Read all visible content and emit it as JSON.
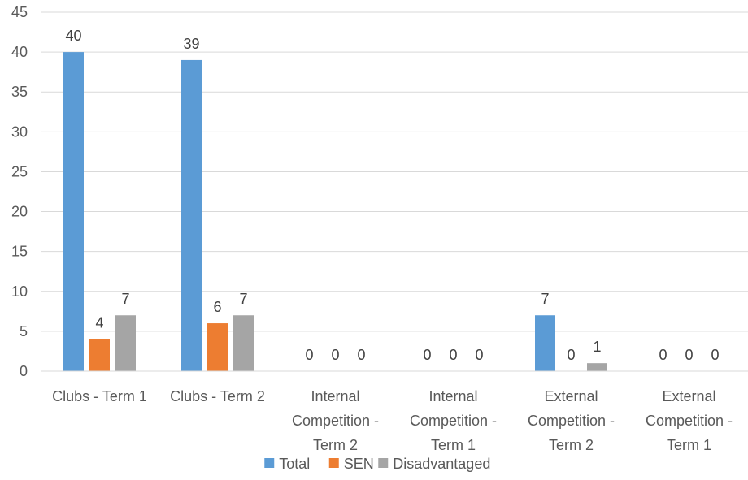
{
  "chart_data": {
    "type": "bar",
    "categories": [
      [
        "Clubs - Term 1"
      ],
      [
        "Clubs - Term 2"
      ],
      [
        "Internal",
        "Competition -",
        "Term 2"
      ],
      [
        "Internal",
        "Competition -",
        "Term 1"
      ],
      [
        "External",
        "Competition -",
        "Term 2"
      ],
      [
        "External",
        "Competition -",
        "Term 1"
      ]
    ],
    "series": [
      {
        "name": "Total",
        "color": "#5b9bd5",
        "values": [
          40,
          39,
          0,
          0,
          7,
          0
        ]
      },
      {
        "name": "SEN",
        "color": "#ed7d31",
        "values": [
          4,
          6,
          0,
          0,
          0,
          0
        ]
      },
      {
        "name": "Disadvantaged",
        "color": "#a5a5a5",
        "values": [
          7,
          7,
          0,
          0,
          1,
          0
        ]
      }
    ],
    "ylim": [
      0,
      45
    ],
    "yticks": [
      0,
      5,
      10,
      15,
      20,
      25,
      30,
      35,
      40,
      45
    ],
    "grid": true,
    "data_labels": true,
    "legend_position": "bottom",
    "gridline_color": "#d9d9d9"
  }
}
